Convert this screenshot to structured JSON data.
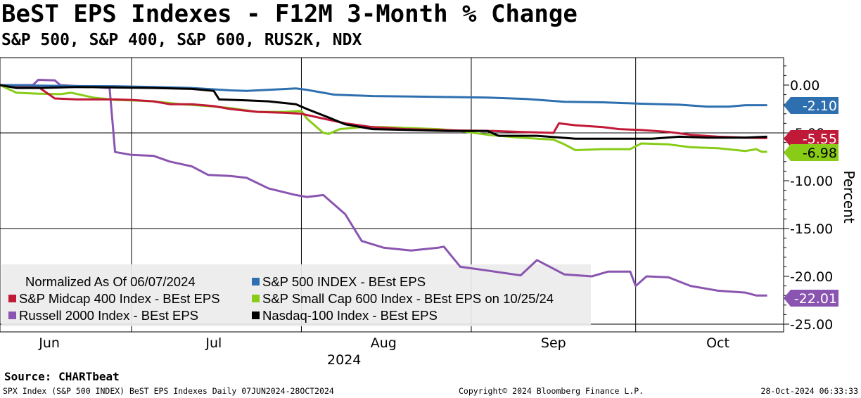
{
  "header": {
    "title": "BeST EPS Indexes - F12M 3-Month % Change",
    "subtitle": "S&P 500, S&P 400, S&P 600, RUS2K, NDX"
  },
  "footer": {
    "source": "Source: CHARTbeat",
    "left": "SPX Index (S&P 500 INDEX) BeST EPS Indexes  Daily 07JUN2024-28OCT2024",
    "middle": "Copyright© 2024 Bloomberg Finance L.P.",
    "right": "28-Oct-2024 06:33:33"
  },
  "chart_data": {
    "type": "line",
    "ylabel": "Percent",
    "ylim": [
      -25.5,
      2.5
    ],
    "yticks": [
      "0.00",
      "-5.00",
      "-10.00",
      "-15.00",
      "-20.00",
      "-25.00"
    ],
    "y_axis_side": "right",
    "grid": "vertical lines at month boundaries; horizontal lines at -5, -15 and -25",
    "xlim": [
      "2024-06-07",
      "2024-10-28"
    ],
    "month_labels": [
      {
        "label": "Jun",
        "date": "2024-06-16"
      },
      {
        "label": "Jul",
        "date": "2024-07-16"
      },
      {
        "label": "Aug",
        "date": "2024-08-16"
      },
      {
        "label": "Sep",
        "date": "2024-09-16"
      },
      {
        "label": "Oct",
        "date": "2024-10-16"
      }
    ],
    "month_dividers": [
      "2024-07-01",
      "2024-08-01",
      "2024-09-01",
      "2024-10-01"
    ],
    "year_label": "2024",
    "legend": {
      "placement": "bottom-left",
      "note": "Normalized As Of 06/07/2024",
      "entries": [
        {
          "label": "S&P 500 INDEX - BEst EPS",
          "color": "#2e6fb0"
        },
        {
          "label": "S&P Midcap 400 Index - BEst EPS",
          "color": "#c01a38"
        },
        {
          "label": "S&P Small Cap 600 Index - BEst EPS on 10/25/24",
          "color": "#88cc18"
        },
        {
          "label": "Russell 2000 Index - BEst EPS",
          "color": "#8a55b0"
        },
        {
          "label": "Nasdaq-100 Index - BEst EPS",
          "color": "#000000"
        }
      ]
    },
    "series": [
      {
        "name": "S&P 500 INDEX - BEst EPS",
        "color": "#2e6fb0",
        "last_label": "-2.10",
        "points": [
          [
            "2024-06-07",
            0
          ],
          [
            "2024-06-14",
            -0.05
          ],
          [
            "2024-06-21",
            -0.1
          ],
          [
            "2024-06-28",
            -0.12
          ],
          [
            "2024-07-05",
            -0.2
          ],
          [
            "2024-07-12",
            -0.3
          ],
          [
            "2024-07-19",
            -0.55
          ],
          [
            "2024-07-22",
            -0.6
          ],
          [
            "2024-07-26",
            -0.5
          ],
          [
            "2024-07-31",
            -0.35
          ],
          [
            "2024-08-02",
            -0.5
          ],
          [
            "2024-08-07",
            -1.0
          ],
          [
            "2024-08-14",
            -1.15
          ],
          [
            "2024-08-21",
            -1.2
          ],
          [
            "2024-08-28",
            -1.25
          ],
          [
            "2024-09-04",
            -1.3
          ],
          [
            "2024-09-11",
            -1.45
          ],
          [
            "2024-09-18",
            -1.75
          ],
          [
            "2024-09-25",
            -1.8
          ],
          [
            "2024-10-02",
            -1.95
          ],
          [
            "2024-10-09",
            -2.05
          ],
          [
            "2024-10-14",
            -2.25
          ],
          [
            "2024-10-18",
            -2.25
          ],
          [
            "2024-10-21",
            -2.1
          ],
          [
            "2024-10-25",
            -2.1
          ]
        ]
      },
      {
        "name": "S&P Midcap 400 Index - BEst EPS",
        "color": "#c01a38",
        "last_label": "-5.55",
        "points": [
          [
            "2024-06-07",
            0
          ],
          [
            "2024-06-10",
            -0.1
          ],
          [
            "2024-06-14",
            -0.2
          ],
          [
            "2024-06-17",
            -1.4
          ],
          [
            "2024-06-21",
            -1.5
          ],
          [
            "2024-06-24",
            -1.5
          ],
          [
            "2024-06-28",
            -1.5
          ],
          [
            "2024-07-01",
            -1.55
          ],
          [
            "2024-07-05",
            -1.7
          ],
          [
            "2024-07-08",
            -2.0
          ],
          [
            "2024-07-12",
            -2.0
          ],
          [
            "2024-07-16",
            -2.2
          ],
          [
            "2024-07-19",
            -2.5
          ],
          [
            "2024-07-24",
            -2.8
          ],
          [
            "2024-07-29",
            -2.9
          ],
          [
            "2024-08-01",
            -3.0
          ],
          [
            "2024-08-05",
            -3.5
          ],
          [
            "2024-08-09",
            -4.0
          ],
          [
            "2024-08-14",
            -4.4
          ],
          [
            "2024-08-20",
            -4.6
          ],
          [
            "2024-08-26",
            -4.7
          ],
          [
            "2024-08-30",
            -4.75
          ],
          [
            "2024-09-05",
            -4.8
          ],
          [
            "2024-09-10",
            -4.9
          ],
          [
            "2024-09-16",
            -5.0
          ],
          [
            "2024-09-17",
            -4.0
          ],
          [
            "2024-09-20",
            -4.2
          ],
          [
            "2024-09-25",
            -4.4
          ],
          [
            "2024-09-28",
            -4.6
          ],
          [
            "2024-10-02",
            -4.7
          ],
          [
            "2024-10-07",
            -4.9
          ],
          [
            "2024-10-11",
            -5.2
          ],
          [
            "2024-10-16",
            -5.4
          ],
          [
            "2024-10-21",
            -5.5
          ],
          [
            "2024-10-25",
            -5.55
          ]
        ]
      },
      {
        "name": "S&P Small Cap 600 Index - BEst EPS on 10/25/24",
        "color": "#88cc18",
        "last_label": "-6.98",
        "points": [
          [
            "2024-06-07",
            0
          ],
          [
            "2024-06-10",
            -0.8
          ],
          [
            "2024-06-14",
            -0.9
          ],
          [
            "2024-06-18",
            -0.95
          ],
          [
            "2024-06-20",
            -0.8
          ],
          [
            "2024-06-24",
            -1.3
          ],
          [
            "2024-06-28",
            -1.55
          ],
          [
            "2024-07-01",
            -1.6
          ],
          [
            "2024-07-05",
            -1.7
          ],
          [
            "2024-07-10",
            -2.0
          ],
          [
            "2024-07-15",
            -2.2
          ],
          [
            "2024-07-19",
            -2.4
          ],
          [
            "2024-07-24",
            -2.8
          ],
          [
            "2024-07-29",
            -2.8
          ],
          [
            "2024-08-01",
            -2.7
          ],
          [
            "2024-08-02",
            -3.5
          ],
          [
            "2024-08-05",
            -5.0
          ],
          [
            "2024-08-06",
            -5.1
          ],
          [
            "2024-08-08",
            -4.6
          ],
          [
            "2024-08-12",
            -4.4
          ],
          [
            "2024-08-16",
            -4.4
          ],
          [
            "2024-08-21",
            -4.5
          ],
          [
            "2024-08-26",
            -4.6
          ],
          [
            "2024-08-30",
            -4.8
          ],
          [
            "2024-09-04",
            -5.2
          ],
          [
            "2024-09-10",
            -5.5
          ],
          [
            "2024-09-16",
            -5.7
          ],
          [
            "2024-09-18",
            -6.2
          ],
          [
            "2024-09-20",
            -6.8
          ],
          [
            "2024-09-25",
            -6.7
          ],
          [
            "2024-09-30",
            -6.7
          ],
          [
            "2024-10-02",
            -6.1
          ],
          [
            "2024-10-07",
            -6.2
          ],
          [
            "2024-10-11",
            -6.5
          ],
          [
            "2024-10-16",
            -6.6
          ],
          [
            "2024-10-21",
            -6.9
          ],
          [
            "2024-10-23",
            -6.7
          ],
          [
            "2024-10-24",
            -6.98
          ],
          [
            "2024-10-25",
            -6.98
          ]
        ]
      },
      {
        "name": "Russell 2000 Index - BEst EPS",
        "color": "#8a55b0",
        "last_label": "-22.01",
        "points": [
          [
            "2024-06-07",
            0
          ],
          [
            "2024-06-13",
            0
          ],
          [
            "2024-06-14",
            0.55
          ],
          [
            "2024-06-17",
            0.5
          ],
          [
            "2024-06-18",
            0
          ],
          [
            "2024-06-24",
            -0.2
          ],
          [
            "2024-06-27",
            -0.3
          ],
          [
            "2024-06-28",
            -7.0
          ],
          [
            "2024-07-01",
            -7.3
          ],
          [
            "2024-07-05",
            -7.4
          ],
          [
            "2024-07-08",
            -8.0
          ],
          [
            "2024-07-12",
            -8.5
          ],
          [
            "2024-07-15",
            -9.4
          ],
          [
            "2024-07-19",
            -9.5
          ],
          [
            "2024-07-22",
            -9.7
          ],
          [
            "2024-07-26",
            -10.8
          ],
          [
            "2024-07-31",
            -11.5
          ],
          [
            "2024-08-02",
            -11.7
          ],
          [
            "2024-08-05",
            -11.5
          ],
          [
            "2024-08-09",
            -13.5
          ],
          [
            "2024-08-12",
            -16.3
          ],
          [
            "2024-08-16",
            -17.0
          ],
          [
            "2024-08-21",
            -17.3
          ],
          [
            "2024-08-26",
            -17.0
          ],
          [
            "2024-08-27",
            -16.9
          ],
          [
            "2024-08-30",
            -19.0
          ],
          [
            "2024-09-04",
            -19.4
          ],
          [
            "2024-09-10",
            -19.9
          ],
          [
            "2024-09-13",
            -18.3
          ],
          [
            "2024-09-18",
            -19.8
          ],
          [
            "2024-09-23",
            -20.0
          ],
          [
            "2024-09-26",
            -19.5
          ],
          [
            "2024-09-30",
            -19.5
          ],
          [
            "2024-10-01",
            -21.0
          ],
          [
            "2024-10-03",
            -20.0
          ],
          [
            "2024-10-07",
            -20.1
          ],
          [
            "2024-10-11",
            -21.0
          ],
          [
            "2024-10-16",
            -21.5
          ],
          [
            "2024-10-21",
            -21.7
          ],
          [
            "2024-10-23",
            -22.0
          ],
          [
            "2024-10-25",
            -22.01
          ]
        ]
      },
      {
        "name": "Nasdaq-100 Index - BEst EPS",
        "color": "#000000",
        "last_label": "",
        "points": [
          [
            "2024-06-07",
            0
          ],
          [
            "2024-06-10",
            -0.3
          ],
          [
            "2024-06-14",
            -0.3
          ],
          [
            "2024-06-21",
            -0.2
          ],
          [
            "2024-06-28",
            -0.25
          ],
          [
            "2024-07-05",
            -0.3
          ],
          [
            "2024-07-12",
            -0.4
          ],
          [
            "2024-07-16",
            -0.6
          ],
          [
            "2024-07-17",
            -1.5
          ],
          [
            "2024-07-22",
            -1.6
          ],
          [
            "2024-07-26",
            -1.7
          ],
          [
            "2024-07-31",
            -2.0
          ],
          [
            "2024-08-02",
            -2.5
          ],
          [
            "2024-08-06",
            -3.4
          ],
          [
            "2024-08-09",
            -4.1
          ],
          [
            "2024-08-14",
            -4.6
          ],
          [
            "2024-08-21",
            -4.7
          ],
          [
            "2024-08-28",
            -4.8
          ],
          [
            "2024-09-04",
            -4.8
          ],
          [
            "2024-09-06",
            -5.3
          ],
          [
            "2024-09-13",
            -5.3
          ],
          [
            "2024-09-20",
            -5.6
          ],
          [
            "2024-09-27",
            -5.6
          ],
          [
            "2024-10-04",
            -5.6
          ],
          [
            "2024-10-09",
            -5.4
          ],
          [
            "2024-10-14",
            -5.5
          ],
          [
            "2024-10-21",
            -5.5
          ],
          [
            "2024-10-25",
            -5.4
          ]
        ]
      }
    ]
  }
}
